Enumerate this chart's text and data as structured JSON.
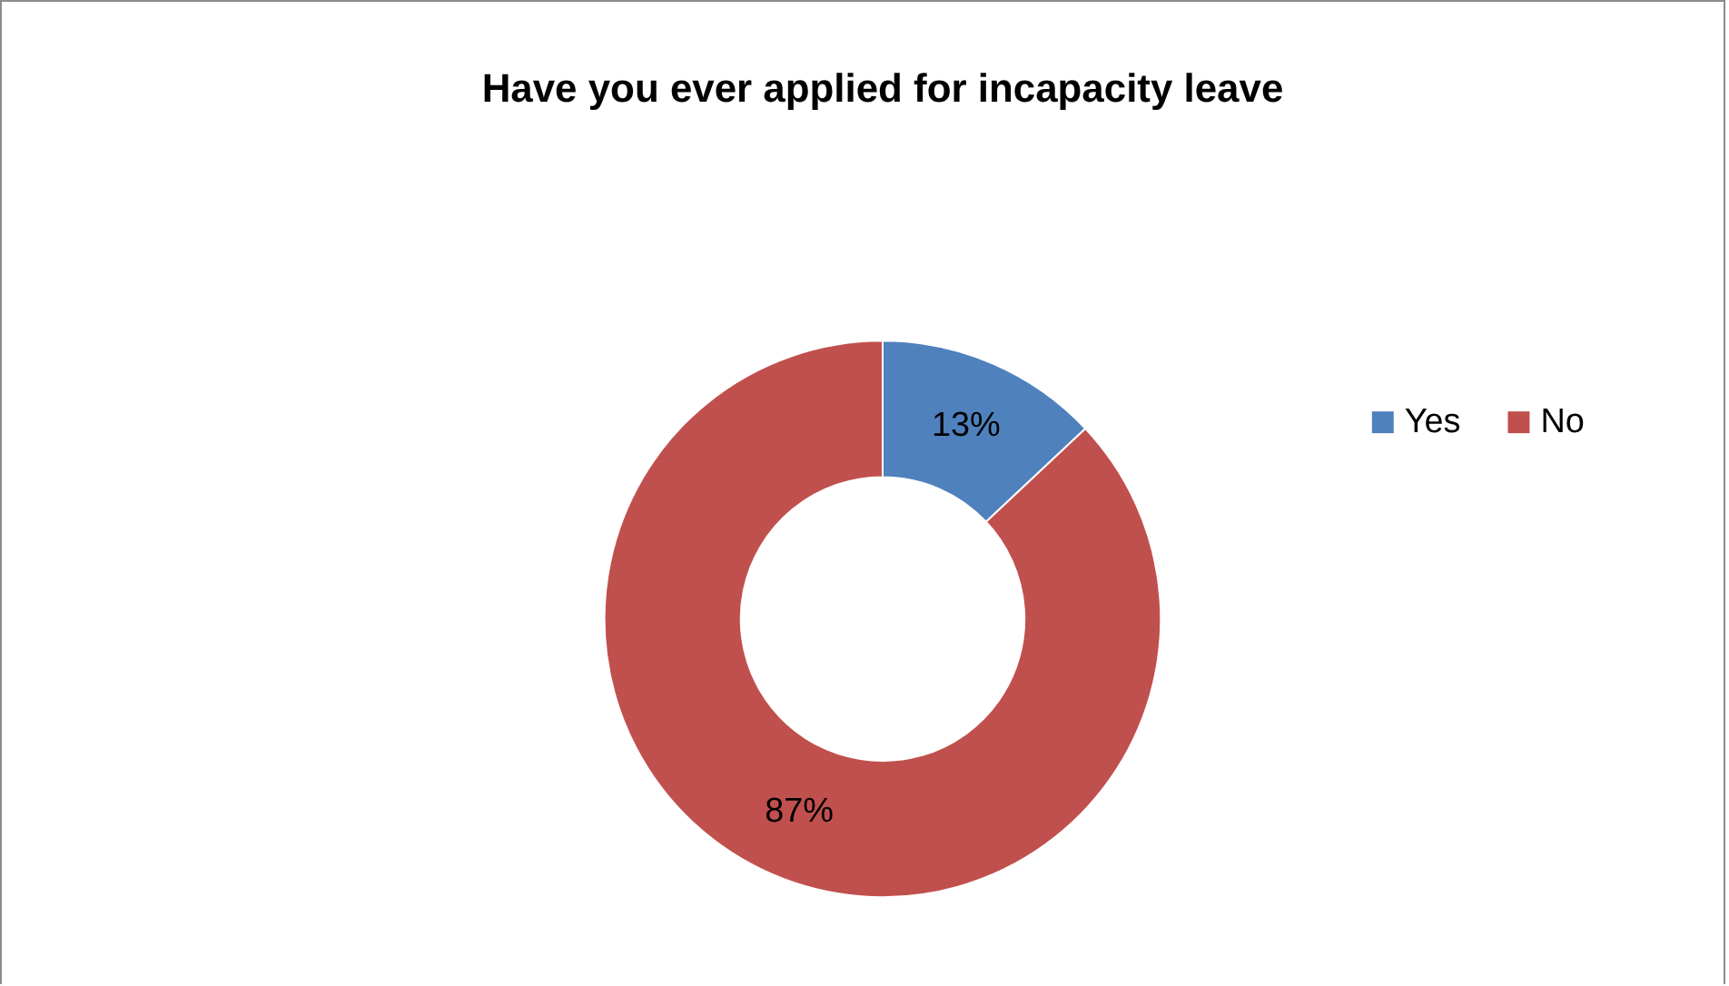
{
  "chart_data": {
    "type": "donut",
    "title": "Have you ever applied for incapacity leave",
    "categories": [
      "Yes",
      "No"
    ],
    "values": [
      13,
      87
    ],
    "colors": [
      "#4f81bd",
      "#c0504d"
    ],
    "value_labels": [
      "13%",
      "87%"
    ],
    "legend": "right"
  }
}
